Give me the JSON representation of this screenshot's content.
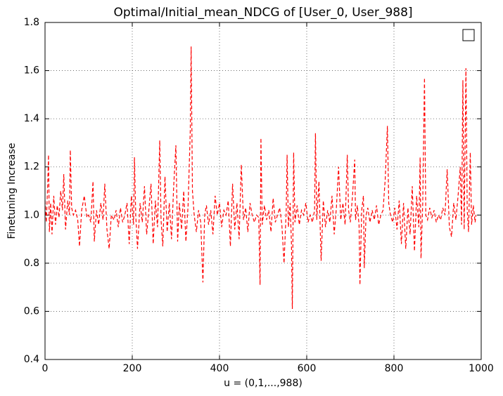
{
  "chart_data": {
    "type": "line",
    "title": "Optimal/Initial_mean_NDCG of [User_0, User_988]",
    "xlabel": "u = (0,1,...,988)",
    "ylabel": "Finetuning Increase",
    "color": "#ff0000",
    "grid": true,
    "xlim": [
      0,
      1000
    ],
    "xticks": [
      0,
      200,
      400,
      600,
      800,
      1000
    ],
    "ylim": [
      0.4,
      1.8
    ],
    "yticks": [
      0.4,
      0.6,
      0.8,
      {
        "value": 1,
        "label": "1.0"
      },
      1.2,
      1.4,
      1.6,
      1.8
    ],
    "x": [
      0,
      3,
      6,
      8,
      10,
      13,
      16,
      20,
      24,
      28,
      32,
      36,
      40,
      43,
      47,
      52,
      56,
      58,
      61,
      65,
      70,
      75,
      79,
      84,
      90,
      96,
      100,
      105,
      110,
      113,
      118,
      123,
      128,
      133,
      137,
      142,
      147,
      152,
      158,
      163,
      168,
      173,
      178,
      183,
      188,
      193,
      198,
      203,
      205,
      208,
      212,
      218,
      223,
      228,
      233,
      238,
      243,
      248,
      253,
      258,
      263,
      266,
      270,
      275,
      280,
      285,
      290,
      295,
      300,
      304,
      308,
      313,
      318,
      323,
      328,
      333,
      335,
      338,
      342,
      347,
      352,
      357,
      362,
      366,
      370,
      375,
      380,
      385,
      390,
      395,
      400,
      405,
      410,
      415,
      420,
      425,
      430,
      435,
      440,
      445,
      450,
      455,
      460,
      465,
      470,
      475,
      480,
      485,
      490,
      493,
      495,
      498,
      503,
      508,
      513,
      518,
      523,
      528,
      533,
      538,
      543,
      548,
      553,
      555,
      558,
      562,
      565,
      567,
      570,
      573,
      578,
      583,
      588,
      593,
      598,
      603,
      608,
      613,
      618,
      620,
      623,
      628,
      633,
      638,
      643,
      648,
      653,
      658,
      663,
      668,
      673,
      678,
      683,
      688,
      693,
      696,
      700,
      705,
      710,
      712,
      716,
      720,
      722,
      726,
      730,
      732,
      736,
      740,
      745,
      750,
      755,
      760,
      765,
      770,
      775,
      780,
      785,
      788,
      792,
      797,
      802,
      807,
      812,
      817,
      822,
      827,
      832,
      837,
      842,
      847,
      852,
      857,
      860,
      862,
      866,
      870,
      873,
      877,
      882,
      887,
      892,
      897,
      902,
      907,
      912,
      917,
      922,
      927,
      932,
      937,
      942,
      947,
      952,
      955,
      958,
      961,
      965,
      968,
      971,
      975,
      978,
      982,
      986,
      988
    ],
    "values": [
      1.06,
      0.97,
      1.12,
      1.25,
      0.93,
      1.05,
      0.92,
      1.08,
      0.96,
      1.04,
      0.99,
      1.1,
      1.02,
      1.17,
      0.94,
      1.06,
      1.0,
      1.27,
      1.03,
      1.0,
      1.02,
      0.98,
      0.87,
      1.02,
      1.08,
      0.99,
      1.0,
      0.97,
      1.14,
      0.89,
      1.02,
      0.96,
      1.05,
      0.98,
      1.13,
      0.94,
      0.86,
      1.0,
      0.98,
      1.02,
      0.95,
      1.03,
      0.97,
      1.0,
      1.05,
      0.88,
      1.08,
      0.96,
      1.24,
      1.0,
      0.86,
      1.05,
      0.97,
      1.12,
      0.92,
      1.02,
      1.13,
      0.88,
      1.06,
      0.95,
      1.31,
      0.98,
      0.87,
      1.16,
      0.93,
      1.05,
      0.9,
      1.12,
      1.29,
      0.89,
      1.05,
      0.94,
      1.1,
      0.89,
      1.04,
      1.35,
      1.7,
      1.1,
      1.0,
      0.93,
      1.02,
      0.97,
      0.72,
      1.0,
      1.04,
      0.96,
      1.02,
      0.92,
      1.08,
      1.0,
      1.05,
      0.95,
      1.02,
      1.0,
      1.06,
      0.87,
      1.13,
      0.94,
      1.05,
      0.9,
      1.21,
      0.98,
      1.03,
      0.93,
      1.05,
      1.0,
      0.97,
      1.0,
      0.99,
      0.71,
      1.32,
      0.96,
      1.04,
      0.98,
      1.02,
      0.93,
      1.07,
      0.97,
      1.0,
      1.03,
      0.96,
      0.8,
      1.02,
      1.25,
      0.95,
      1.05,
      0.88,
      0.61,
      1.26,
      0.97,
      1.04,
      0.96,
      1.02,
      1.0,
      1.05,
      0.97,
      1.0,
      0.97,
      1.02,
      1.34,
      0.98,
      1.14,
      0.81,
      1.06,
      0.95,
      1.02,
      0.97,
      1.08,
      0.92,
      1.03,
      1.2,
      0.98,
      1.05,
      0.96,
      1.25,
      1.02,
      0.97,
      1.08,
      1.23,
      0.98,
      1.04,
      0.96,
      0.71,
      1.02,
      1.08,
      0.78,
      1.0,
      1.03,
      0.97,
      1.02,
      0.98,
      1.04,
      0.96,
      1.0,
      1.02,
      1.15,
      1.37,
      1.05,
      1.0,
      0.97,
      1.03,
      0.94,
      1.06,
      0.88,
      1.05,
      0.86,
      1.03,
      0.92,
      1.12,
      0.85,
      1.08,
      0.95,
      1.24,
      0.82,
      1.05,
      1.57,
      1.0,
      0.98,
      1.03,
      0.99,
      1.02,
      0.97,
      1.0,
      0.98,
      1.03,
      1.0,
      1.19,
      0.95,
      0.91,
      1.05,
      0.98,
      1.08,
      1.2,
      0.96,
      1.56,
      0.94,
      1.61,
      1.02,
      0.93,
      1.26,
      0.96,
      1.04,
      0.97,
      1.0
    ]
  }
}
